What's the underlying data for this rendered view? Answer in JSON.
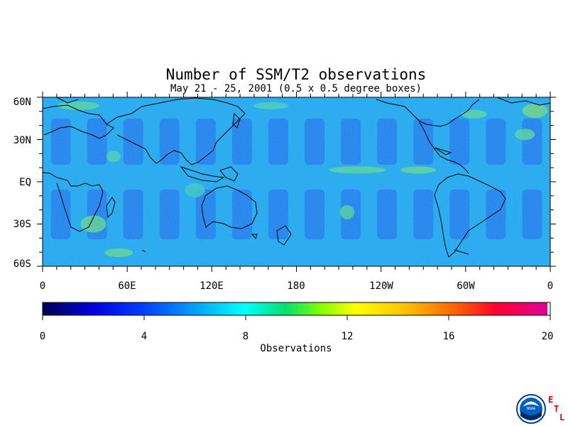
{
  "title": "Number of SSM/T2 observations",
  "subtitle": "May 21 - 25, 2001 (0.5 x 0.5 degree boxes)",
  "map": {
    "lat_labels": [
      "60N",
      "30N",
      "EQ",
      "30S",
      "60S"
    ],
    "lon_labels": [
      "0",
      "60E",
      "120E",
      "180",
      "120W",
      "60W",
      "0"
    ],
    "lat_range": [
      -60,
      60
    ],
    "lon_range": [
      0,
      360
    ]
  },
  "colorbar": {
    "label": "Observations",
    "ticks": [
      "0",
      "4",
      "8",
      "12",
      "16",
      "20"
    ],
    "range": [
      0,
      20
    ],
    "colors": [
      "#000060",
      "#0000ff",
      "#0060ff",
      "#00c0ff",
      "#00ffff",
      "#00e060",
      "#60ff00",
      "#ffff00",
      "#ffc000",
      "#ff8000",
      "#ff4000",
      "#ff0040",
      "#e0008c",
      "#ffffff"
    ]
  },
  "logo": {
    "noaa_text": "NOAA",
    "etl_letters": [
      "E",
      "T",
      "L"
    ],
    "etl_color": "#e00000"
  }
}
